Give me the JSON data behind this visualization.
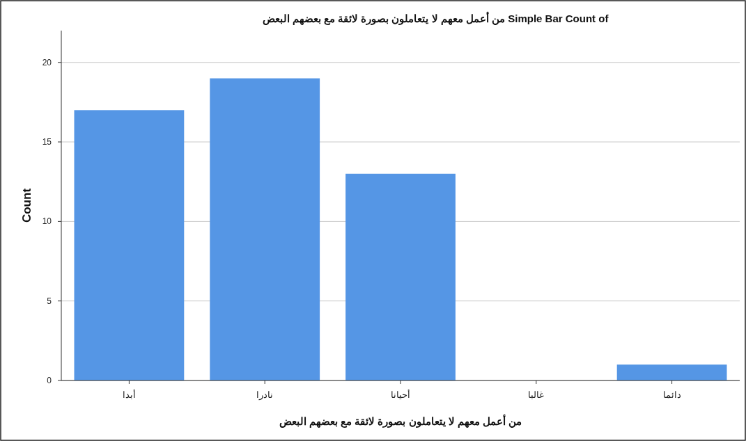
{
  "chart_data": {
    "type": "bar",
    "title": "Simple Bar Count of من أعمل معهم لا يتعاملون بصورة لائقة مع بعضهم البعض",
    "xlabel": "من أعمل معهم لا يتعاملون بصورة لائقة مع بعضهم البعض",
    "ylabel": "Count",
    "categories": [
      "أبدا",
      "نادرا",
      "أحيانا",
      "غالبا",
      "دائما"
    ],
    "values": [
      17,
      19,
      13,
      0,
      1
    ],
    "color": "#5596e5",
    "ylim": [
      0,
      22
    ],
    "yticks": [
      0,
      5,
      10,
      15,
      20
    ],
    "grid": "y"
  }
}
